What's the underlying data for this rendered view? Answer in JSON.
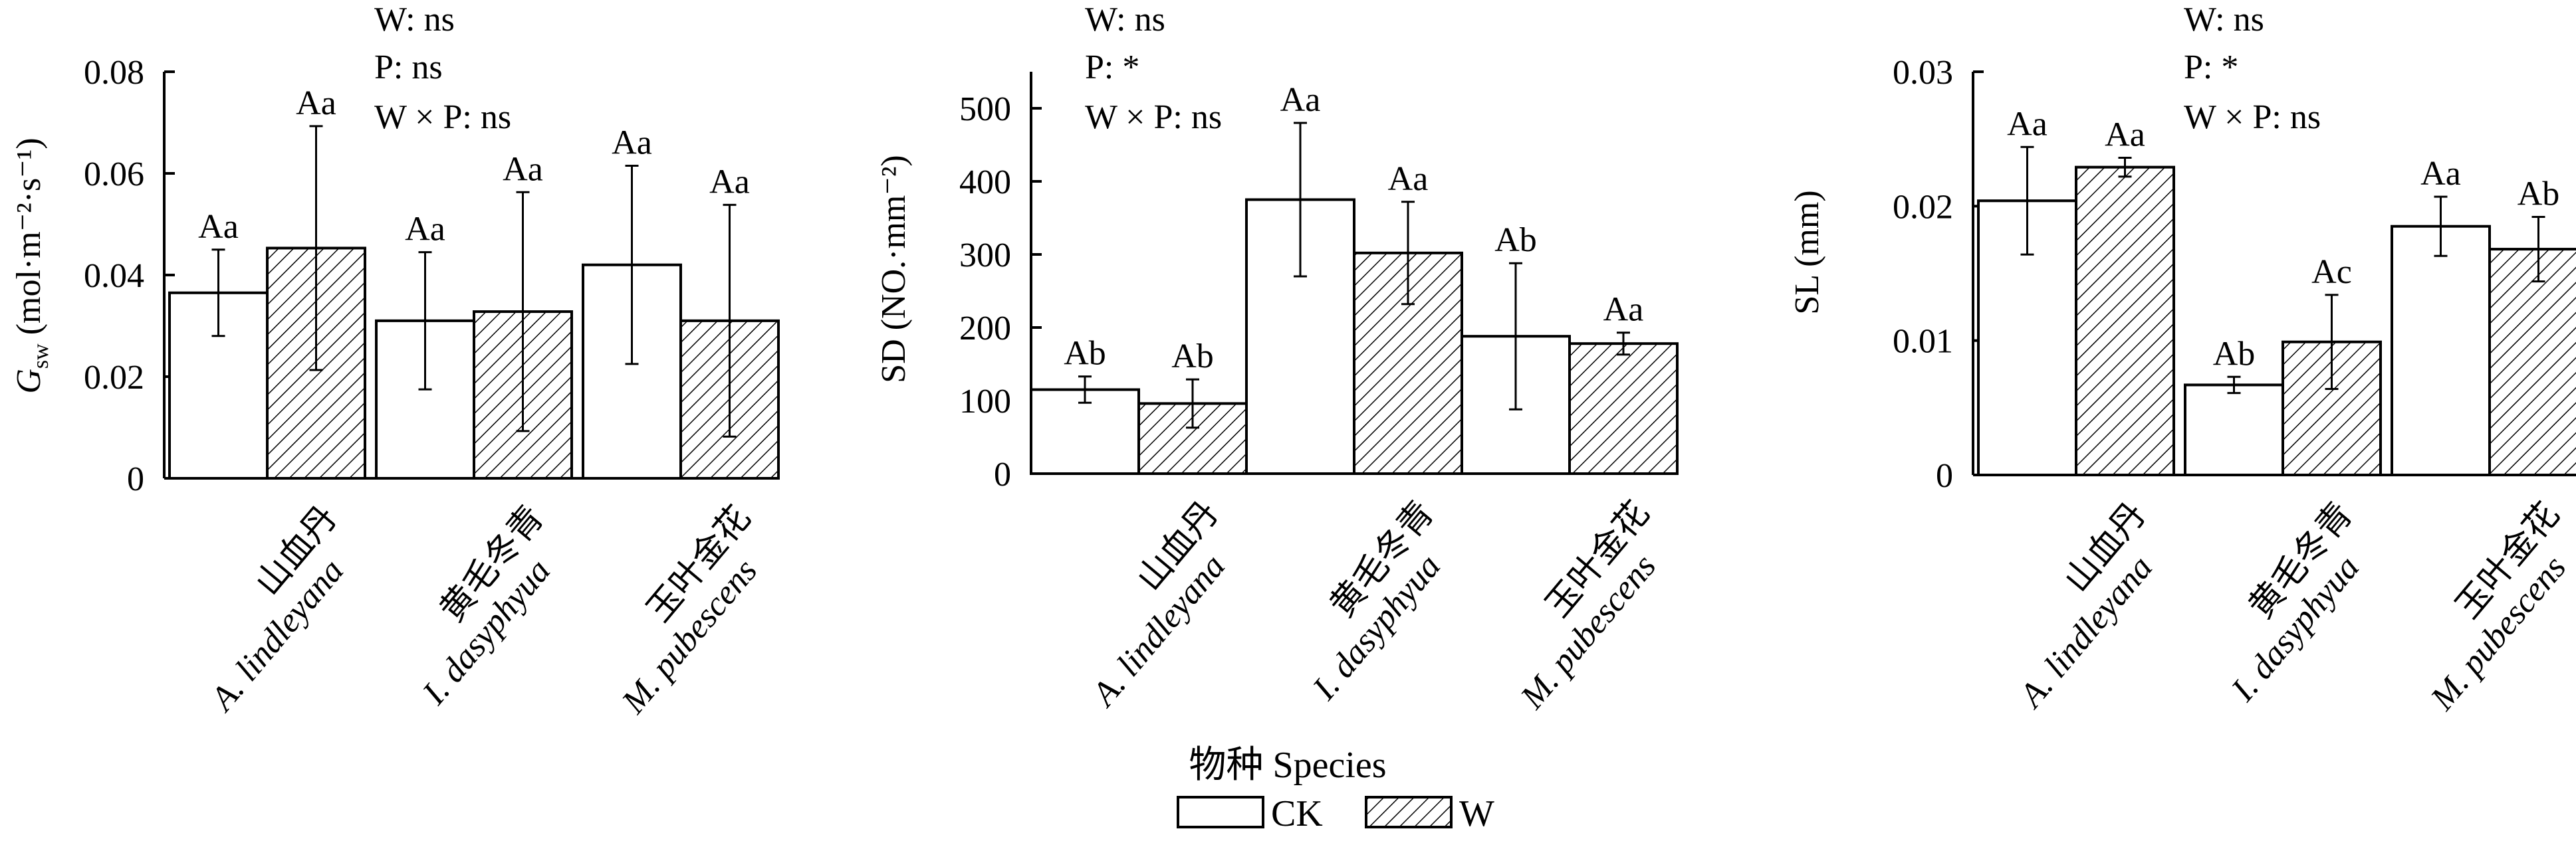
{
  "colors": {
    "ck_fill": "#ffffff",
    "w_fill": "hatch",
    "stroke": "#000000"
  },
  "xaxis_title": "物种 Species",
  "legend": {
    "placement": "bottom-center",
    "items": [
      {
        "key": "ck",
        "label": "CK"
      },
      {
        "key": "w",
        "label": "W"
      }
    ]
  },
  "categories": [
    {
      "zh": "山血丹",
      "latin": "A. lindleyana"
    },
    {
      "zh": "黄毛冬青",
      "latin": "I. dasyphyua"
    },
    {
      "zh": "玉叶金花",
      "latin": "M. pubescens"
    }
  ],
  "chart_data": [
    {
      "type": "bar",
      "ylabel": {
        "main": "G",
        "sub": "sw",
        "unit": " (mol·m⁻²·s⁻¹)"
      },
      "ylim": [
        0,
        0.08
      ],
      "yticks": [
        {
          "v": 0,
          "label": "0"
        },
        {
          "v": 0.02,
          "label": "0.02"
        },
        {
          "v": 0.04,
          "label": "0.04"
        },
        {
          "v": 0.06,
          "label": "0.06"
        },
        {
          "v": 0.08,
          "label": "0.08"
        }
      ],
      "stats": [
        "W: ns",
        "P: ns",
        "W × P: ns"
      ],
      "series": [
        {
          "name": "CK",
          "values": [
            0.0365,
            0.031,
            0.042
          ],
          "errors": [
            0.0085,
            0.0135,
            0.0195
          ],
          "labels": [
            "Aa",
            "Aa",
            "Aa"
          ]
        },
        {
          "name": "W",
          "values": [
            0.0453,
            0.0328,
            0.031
          ],
          "errors": [
            0.024,
            0.0235,
            0.0228
          ],
          "labels": [
            "Aa",
            "Aa",
            "Aa"
          ]
        }
      ]
    },
    {
      "type": "bar",
      "ylabel": {
        "main": "SD (NO.·mm⁻²)",
        "sub": "",
        "unit": ""
      },
      "ylim": [
        0,
        550
      ],
      "yticks": [
        {
          "v": 0,
          "label": "0"
        },
        {
          "v": 100,
          "label": "100"
        },
        {
          "v": 200,
          "label": "200"
        },
        {
          "v": 300,
          "label": "300"
        },
        {
          "v": 400,
          "label": "400"
        },
        {
          "v": 500,
          "label": "500"
        }
      ],
      "stats": [
        "W: ns",
        "P: *",
        "W × P: ns"
      ],
      "series": [
        {
          "name": "CK",
          "values": [
            115,
            375,
            188
          ],
          "errors": [
            18,
            105,
            100
          ],
          "labels": [
            "Ab",
            "Aa",
            "Ab"
          ]
        },
        {
          "name": "W",
          "values": [
            96,
            302,
            178
          ],
          "errors": [
            33,
            70,
            15
          ],
          "labels": [
            "Ab",
            "Aa",
            "Aa"
          ]
        }
      ]
    },
    {
      "type": "bar",
      "ylabel": {
        "main": "SL (mm)",
        "sub": "",
        "unit": ""
      },
      "ylim": [
        0,
        0.03
      ],
      "yticks": [
        {
          "v": 0,
          "label": "0"
        },
        {
          "v": 0.01,
          "label": "0.01"
        },
        {
          "v": 0.02,
          "label": "0.02"
        },
        {
          "v": 0.03,
          "label": "0.03"
        }
      ],
      "stats": [
        "W: ns",
        "P: *",
        "W × P: ns"
      ],
      "series": [
        {
          "name": "CK",
          "values": [
            0.0204,
            0.0067,
            0.0185
          ],
          "errors": [
            0.004,
            0.0006,
            0.0022
          ],
          "labels": [
            "Aa",
            "Ab",
            "Aa"
          ]
        },
        {
          "name": "W",
          "values": [
            0.0229,
            0.0099,
            0.0168
          ],
          "errors": [
            0.0007,
            0.0035,
            0.0024
          ],
          "labels": [
            "Aa",
            "Ac",
            "Ab"
          ]
        }
      ]
    }
  ]
}
